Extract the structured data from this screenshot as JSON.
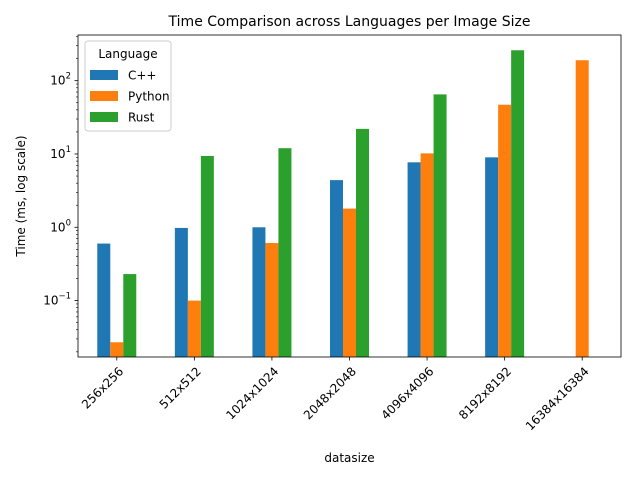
{
  "chart_data": {
    "type": "bar",
    "title": "Time Comparison across Languages per Image Size",
    "xlabel": "datasize",
    "ylabel": "Time (ms, log scale)",
    "yscale": "log",
    "ylim": [
      0.017,
      420
    ],
    "y_ticks": [
      {
        "value": 0.1,
        "base": "10",
        "exp": "−1"
      },
      {
        "value": 1,
        "base": "10",
        "exp": "0"
      },
      {
        "value": 10,
        "base": "10",
        "exp": "1"
      },
      {
        "value": 100,
        "base": "10",
        "exp": "2"
      }
    ],
    "categories": [
      "256x256",
      "512x512",
      "1024x1024",
      "2048x2048",
      "4096x4096",
      "8192x8192",
      "16384x16384"
    ],
    "series": [
      {
        "name": "C++",
        "color": "#1f77b4",
        "values": [
          0.6,
          0.98,
          1.0,
          4.4,
          7.7,
          9.0,
          null
        ]
      },
      {
        "name": "Python",
        "color": "#ff7f0e",
        "values": [
          0.027,
          0.1,
          0.61,
          1.8,
          10.2,
          47,
          190
        ]
      },
      {
        "name": "Rust",
        "color": "#2ca02c",
        "values": [
          0.23,
          9.4,
          12,
          22,
          65,
          260,
          null
        ]
      }
    ],
    "legend": {
      "title": "Language",
      "position": "upper-left"
    },
    "grid": false
  }
}
